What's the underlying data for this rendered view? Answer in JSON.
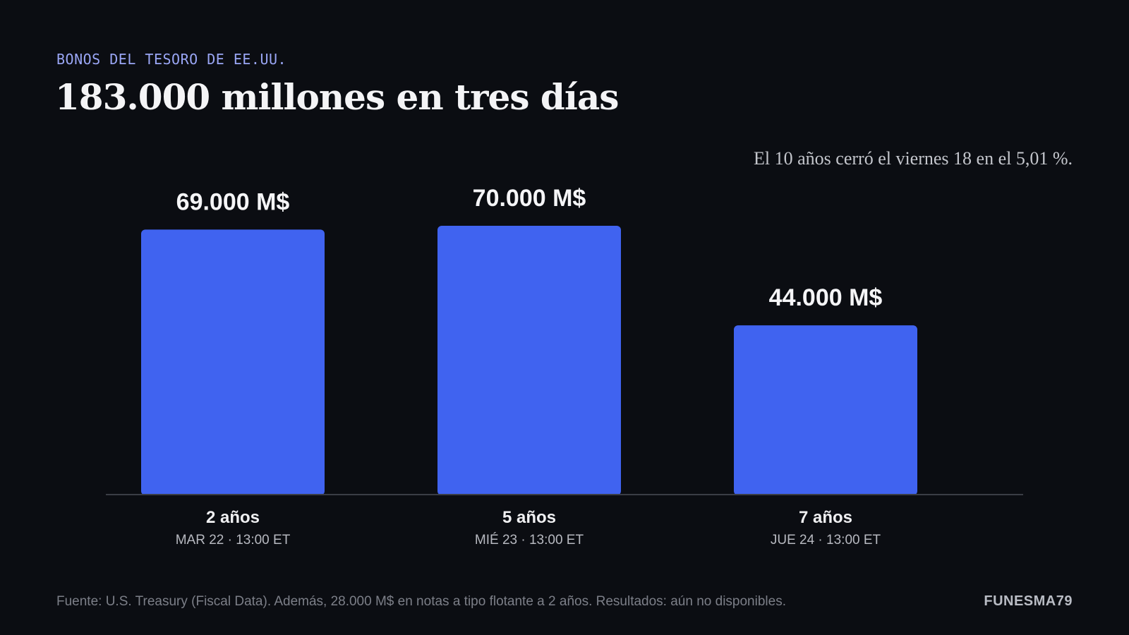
{
  "header": {
    "eyebrow": "BONOS DEL TESORO DE EE.UU.",
    "title": "183.000 millones en tres días"
  },
  "note": "El 10 años cerró el viernes 18 en el 5,01 %.",
  "footer": {
    "source": "Fuente: U.S. Treasury (Fiscal Data). Además, 28.000 M$ en notas a tipo flotante a 2 años. Resultados: aún no disponibles.",
    "brand": "FUNESMA79"
  },
  "colors": {
    "background": "#0b0d12",
    "bar": "#4063f0",
    "axis": "#3a3d45"
  },
  "chart_data": {
    "type": "bar",
    "categories": [
      "2 años",
      "5 años",
      "7 años"
    ],
    "subcategories": [
      "MAR 22 · 13:00 ET",
      "MIÉ 23 · 13:00 ET",
      "JUE 24 · 13:00 ET"
    ],
    "values": [
      69000,
      70000,
      44000
    ],
    "value_labels": [
      "69.000 M$",
      "70.000 M$",
      "44.000 M$"
    ],
    "ylim": [
      0,
      70000
    ],
    "grid": false,
    "legend": "none"
  }
}
